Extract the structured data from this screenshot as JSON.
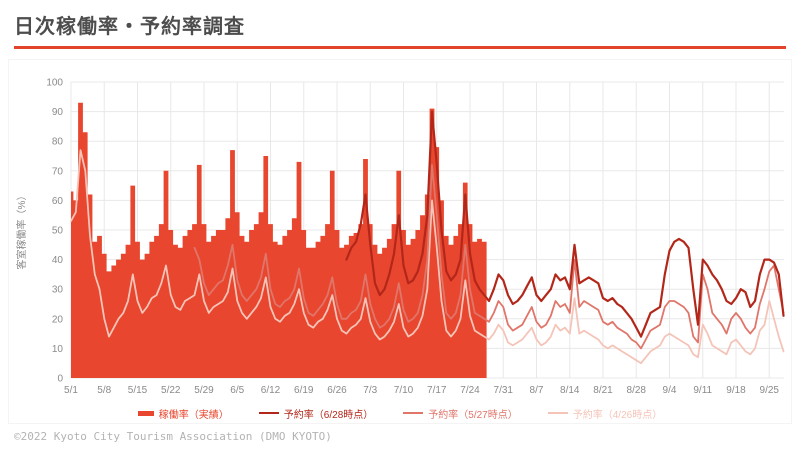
{
  "header": {
    "title": "日次稼働率・予約率調査"
  },
  "footer": {
    "copyright": "©2022 Kyoto City Tourism Association (DMO KYOTO)"
  },
  "chart_data": {
    "type": "area",
    "title": "日次稼働率・予約率調査",
    "xlabel": "",
    "ylabel": "客室稼働率（%）",
    "ylim": [
      0,
      100
    ],
    "y_ticks": [
      0,
      10,
      20,
      30,
      40,
      50,
      60,
      70,
      80,
      90,
      100
    ],
    "grid": true,
    "legend_position": "bottom",
    "x_start_date": "5/1",
    "days_per_tick": 7,
    "x_tick_labels": [
      "5/1",
      "5/8",
      "5/15",
      "5/22",
      "5/29",
      "6/5",
      "6/12",
      "6/19",
      "6/26",
      "7/3",
      "7/10",
      "7/17",
      "7/24",
      "7/31",
      "8/7",
      "8/14",
      "8/21",
      "8/28",
      "9/4",
      "9/11",
      "9/18",
      "9/25"
    ],
    "axis_color": "#8a8a8a",
    "grid_color": "#e8e8e8",
    "series": [
      {
        "name": "稼働率（実績）",
        "type": "area",
        "color": "#e8462e",
        "start_day": 0,
        "values": [
          63,
          60,
          93,
          83,
          62,
          46,
          48,
          42,
          36,
          38,
          40,
          42,
          45,
          65,
          46,
          40,
          42,
          46,
          48,
          52,
          70,
          50,
          45,
          44,
          48,
          50,
          52,
          72,
          52,
          46,
          48,
          50,
          50,
          54,
          77,
          56,
          48,
          46,
          50,
          52,
          56,
          75,
          52,
          46,
          45,
          48,
          50,
          54,
          73,
          50,
          44,
          44,
          46,
          48,
          52,
          70,
          50,
          44,
          45,
          48,
          49,
          52,
          74,
          52,
          45,
          42,
          44,
          47,
          52,
          70,
          50,
          45,
          47,
          50,
          55,
          62,
          91,
          78,
          60,
          48,
          45,
          48,
          52,
          66,
          52,
          46,
          47,
          46
        ]
      },
      {
        "name": "予約率（6/28時点）",
        "type": "line",
        "color": "#b3271a",
        "start_day": 58,
        "values": [
          40,
          44,
          46,
          52,
          62,
          45,
          32,
          28,
          30,
          35,
          42,
          55,
          38,
          32,
          33,
          36,
          42,
          55,
          90,
          72,
          50,
          36,
          33,
          35,
          40,
          62,
          42,
          33,
          30,
          28,
          26,
          30,
          35,
          33,
          28,
          25,
          26,
          28,
          31,
          34,
          28,
          26,
          28,
          30,
          35,
          33,
          34,
          30,
          45,
          32,
          33,
          34,
          33,
          32,
          27,
          26,
          27,
          25,
          24,
          22,
          20,
          17,
          14,
          18,
          22,
          23,
          24,
          35,
          43,
          46,
          47,
          46,
          44,
          30,
          18,
          40,
          38,
          35,
          33,
          30,
          26,
          25,
          27,
          30,
          29,
          24,
          26,
          35,
          40,
          40,
          39,
          35,
          21
        ]
      },
      {
        "name": "予約率（5/27時点）",
        "type": "line",
        "color": "#e0756a",
        "start_day": 26,
        "values": [
          44,
          40,
          32,
          28,
          30,
          32,
          33,
          38,
          45,
          33,
          28,
          26,
          28,
          30,
          34,
          42,
          30,
          25,
          24,
          26,
          27,
          30,
          37,
          27,
          22,
          21,
          23,
          25,
          28,
          34,
          25,
          20,
          20,
          22,
          23,
          26,
          35,
          25,
          20,
          17,
          18,
          20,
          24,
          32,
          23,
          19,
          20,
          22,
          28,
          40,
          72,
          55,
          35,
          22,
          20,
          22,
          28,
          45,
          30,
          22,
          21,
          20,
          19,
          22,
          26,
          24,
          18,
          16,
          17,
          18,
          21,
          24,
          19,
          17,
          18,
          21,
          26,
          24,
          25,
          22,
          40,
          24,
          26,
          25,
          24,
          23,
          19,
          18,
          19,
          17,
          16,
          15,
          13,
          12,
          10,
          13,
          16,
          17,
          18,
          24,
          26,
          26,
          25,
          24,
          22,
          14,
          12,
          35,
          30,
          22,
          20,
          18,
          15,
          20,
          22,
          20,
          17,
          15,
          17,
          25,
          30,
          36,
          38,
          30,
          22
        ]
      },
      {
        "name": "予約率（4/26時点）",
        "type": "line",
        "color": "#f4c4b8",
        "start_day": 0,
        "values": [
          53,
          56,
          77,
          70,
          48,
          35,
          30,
          20,
          14,
          17,
          20,
          22,
          26,
          35,
          26,
          22,
          24,
          27,
          28,
          32,
          38,
          28,
          24,
          23,
          26,
          27,
          28,
          35,
          26,
          22,
          24,
          25,
          26,
          29,
          37,
          26,
          22,
          20,
          22,
          24,
          27,
          34,
          24,
          20,
          19,
          21,
          22,
          25,
          30,
          22,
          18,
          17,
          19,
          20,
          23,
          28,
          20,
          16,
          15,
          17,
          18,
          20,
          27,
          19,
          15,
          13,
          14,
          16,
          19,
          25,
          17,
          14,
          15,
          17,
          21,
          30,
          60,
          44,
          26,
          16,
          14,
          16,
          20,
          33,
          21,
          16,
          15,
          14,
          13,
          15,
          18,
          16,
          12,
          11,
          12,
          13,
          15,
          17,
          13,
          11,
          12,
          14,
          18,
          16,
          17,
          15,
          27,
          15,
          16,
          15,
          14,
          13,
          11,
          10,
          11,
          10,
          9,
          8,
          7,
          6,
          5,
          7,
          9,
          10,
          11,
          14,
          15,
          14,
          13,
          12,
          11,
          8,
          7,
          18,
          15,
          11,
          10,
          9,
          8,
          12,
          13,
          11,
          9,
          8,
          10,
          16,
          18,
          26,
          20,
          14,
          9
        ]
      }
    ]
  }
}
